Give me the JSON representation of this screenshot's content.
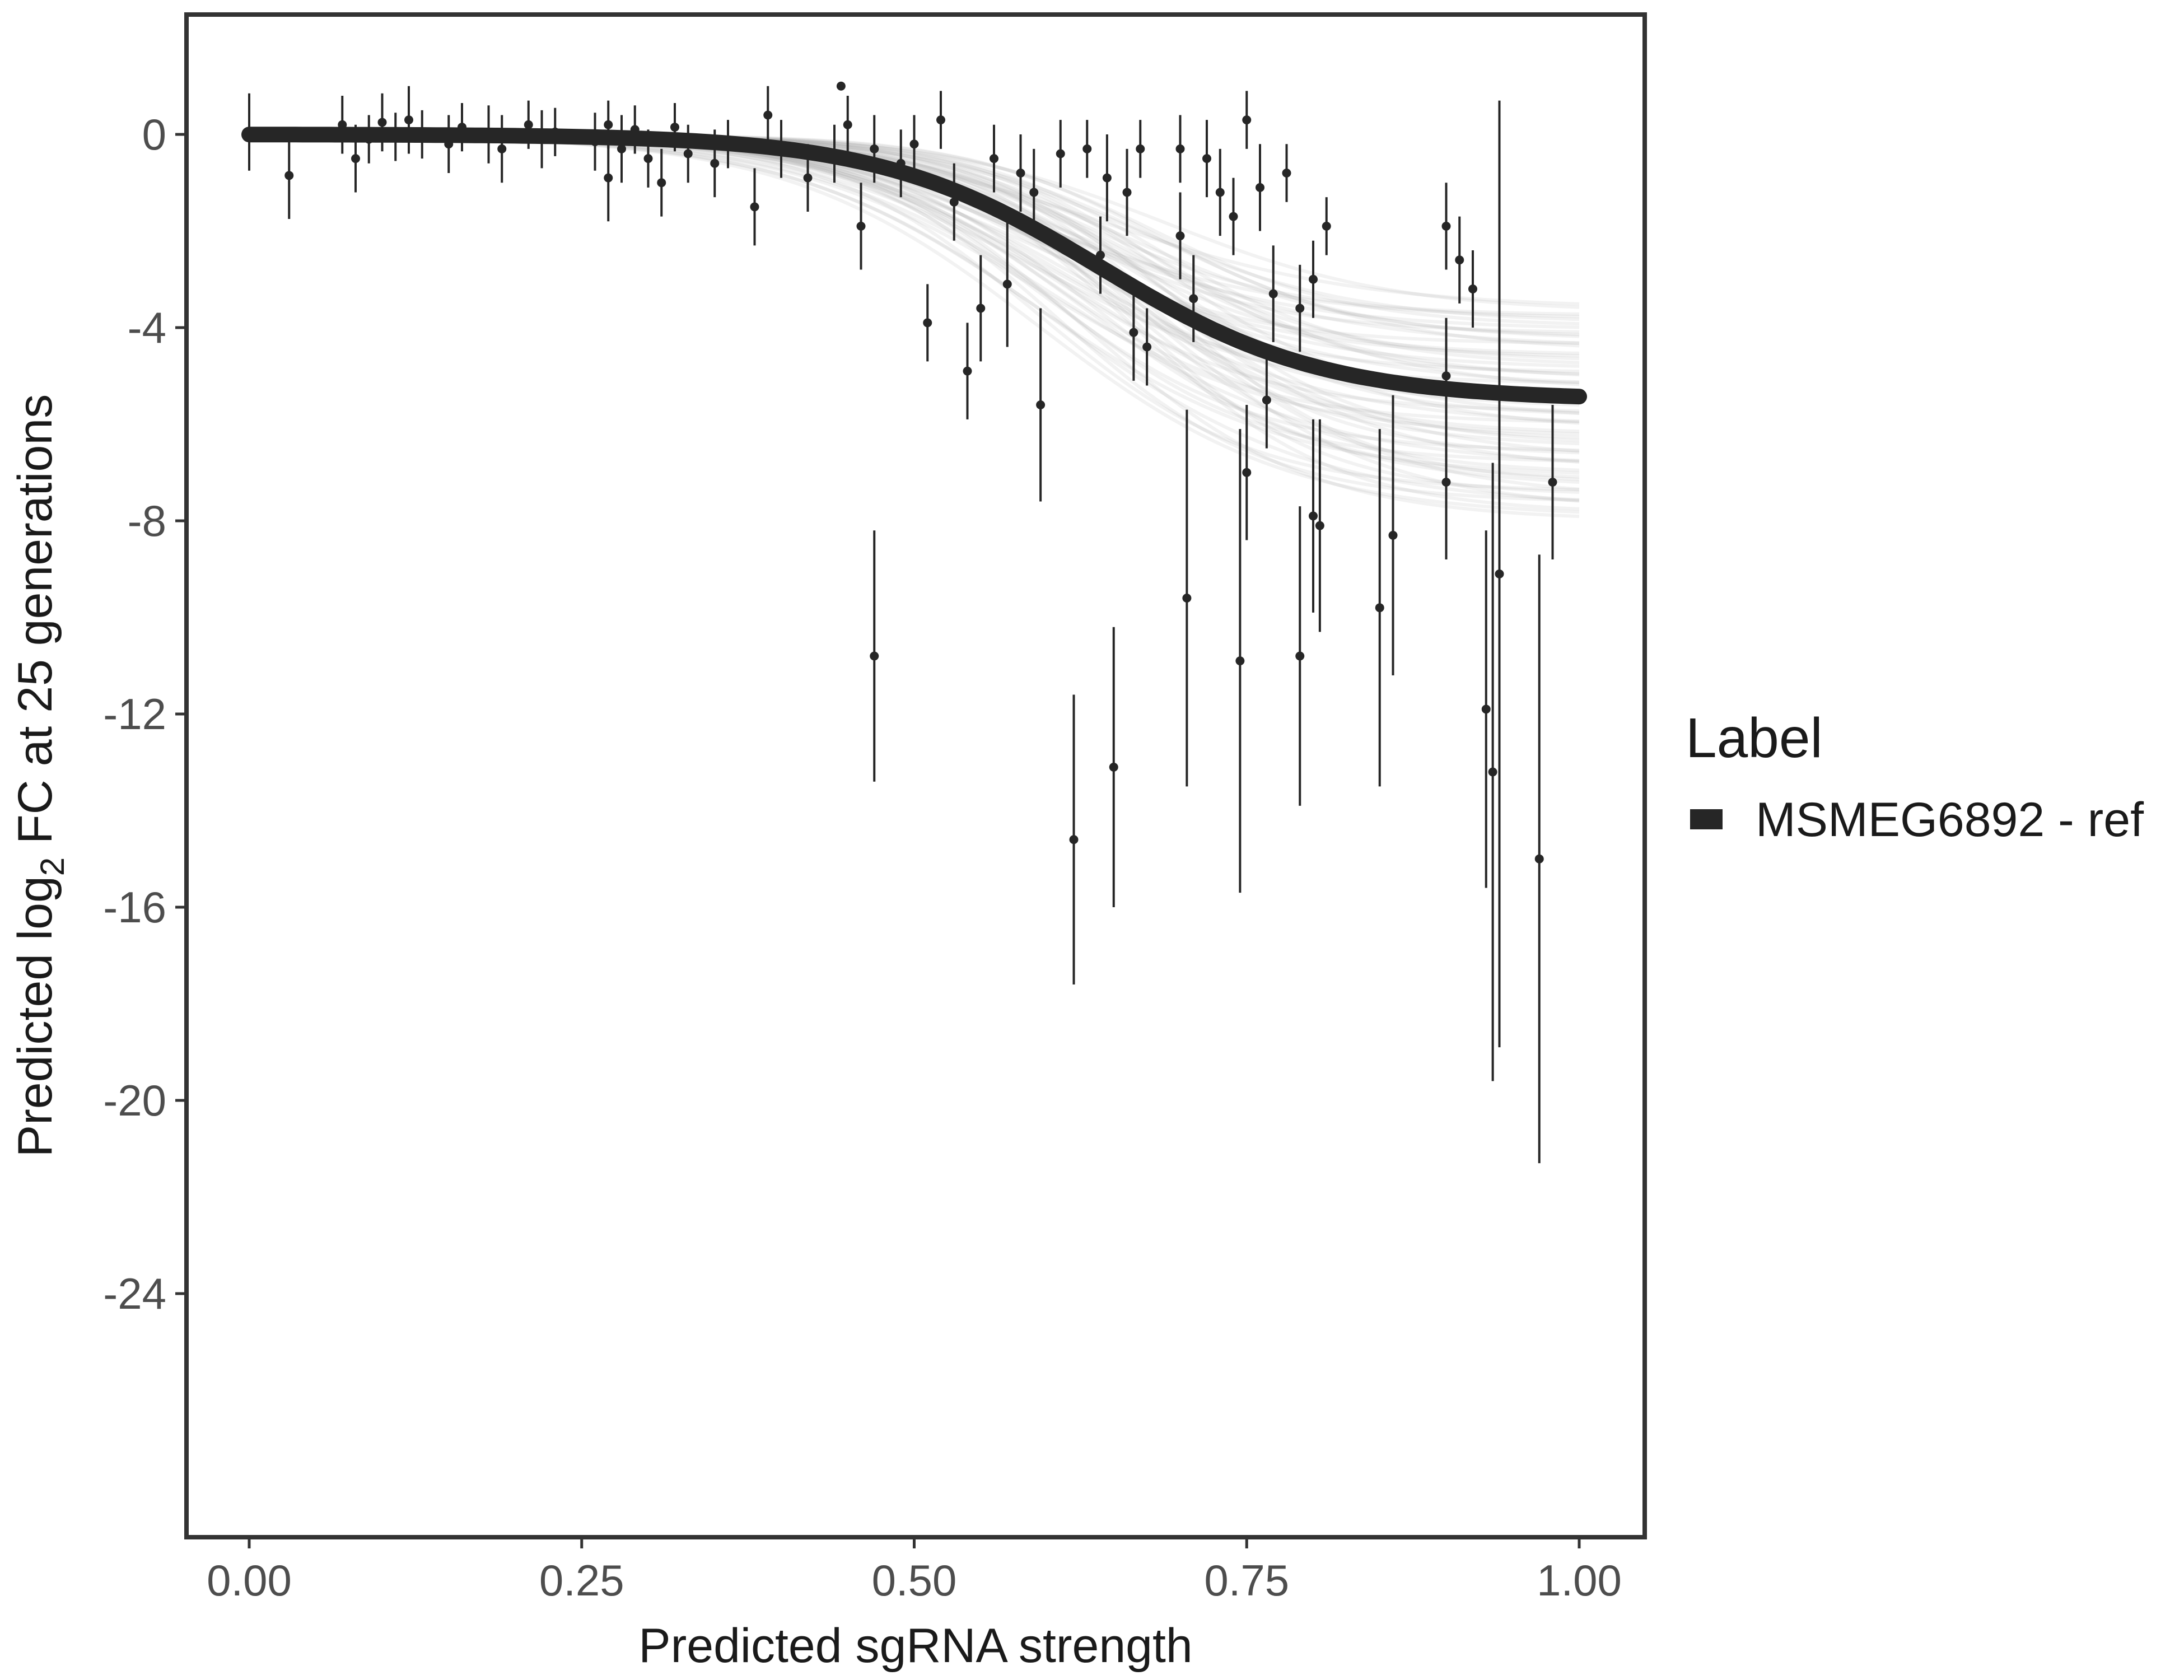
{
  "chart_data": {
    "type": "scatter",
    "title": "",
    "xlabel": "Predicted sgRNA strength",
    "ylabel_parts": {
      "prefix": "Predicted  log",
      "subscript": "2",
      "suffix": " FC at 25 generations"
    },
    "xlim": [
      -0.1,
      2.094
    ],
    "ylim": [
      -29.5,
      2.4
    ],
    "x_ticks": [
      0.0,
      0.25,
      0.5,
      0.75,
      1.0
    ],
    "x_tick_labels": [
      "0.00",
      "0.25",
      "0.50",
      "0.75",
      "1.00"
    ],
    "y_ticks": [
      0,
      -4,
      -8,
      -12,
      -16,
      -20,
      -24
    ],
    "y_tick_labels": [
      "0",
      "-4",
      "-8",
      "-12",
      "-16",
      "-20",
      "-24"
    ],
    "grid": false,
    "legend": {
      "title": "Label",
      "position": "right",
      "entries": [
        "MSMEG6892 - ref"
      ]
    },
    "colors": {
      "fit_line": "#262626",
      "bands": "#9e9e9e",
      "points": "#262626",
      "frame": "#333333"
    },
    "fit_curve": {
      "plateau": -5.5,
      "midpoint": 0.64,
      "slope": 12.0
    },
    "band_bounds": {
      "upper_plateau": -3.6,
      "lower_plateau": -8.0
    },
    "points": [
      [
        0.0,
        0.05,
        0.8
      ],
      [
        0.03,
        -0.85,
        0.9
      ],
      [
        0.07,
        0.2,
        0.6
      ],
      [
        0.08,
        -0.5,
        0.7
      ],
      [
        0.09,
        -0.1,
        0.5
      ],
      [
        0.1,
        0.25,
        0.6
      ],
      [
        0.11,
        -0.05,
        0.5
      ],
      [
        0.12,
        0.3,
        0.7
      ],
      [
        0.13,
        0.0,
        0.5
      ],
      [
        0.15,
        -0.2,
        0.6
      ],
      [
        0.16,
        0.15,
        0.5
      ],
      [
        0.18,
        0.0,
        0.6
      ],
      [
        0.19,
        -0.3,
        0.7
      ],
      [
        0.21,
        0.2,
        0.5
      ],
      [
        0.22,
        -0.1,
        0.6
      ],
      [
        0.23,
        0.05,
        0.5
      ],
      [
        0.26,
        -0.15,
        0.6
      ],
      [
        0.27,
        0.2,
        0.5
      ],
      [
        0.27,
        -0.9,
        0.9
      ],
      [
        0.28,
        -0.3,
        0.7
      ],
      [
        0.29,
        0.1,
        0.5
      ],
      [
        0.3,
        -0.5,
        0.6
      ],
      [
        0.31,
        -1.0,
        0.7
      ],
      [
        0.32,
        0.15,
        0.5
      ],
      [
        0.33,
        -0.4,
        0.6
      ],
      [
        0.35,
        -0.6,
        0.7
      ],
      [
        0.36,
        -0.2,
        0.5
      ],
      [
        0.38,
        -1.5,
        0.8
      ],
      [
        0.39,
        0.4,
        0.6
      ],
      [
        0.4,
        -0.3,
        0.6
      ],
      [
        0.42,
        -0.9,
        0.7
      ],
      [
        0.44,
        -0.4,
        0.6
      ],
      [
        0.445,
        1.0,
        0.0
      ],
      [
        0.45,
        0.2,
        0.6
      ],
      [
        0.46,
        -1.9,
        0.9
      ],
      [
        0.47,
        -0.3,
        0.7
      ],
      [
        0.47,
        -10.8,
        2.6
      ],
      [
        0.49,
        -0.6,
        0.7
      ],
      [
        0.5,
        -0.2,
        0.6
      ],
      [
        0.51,
        -3.9,
        0.8
      ],
      [
        0.52,
        0.3,
        0.6
      ],
      [
        0.53,
        -1.4,
        0.8
      ],
      [
        0.54,
        -4.9,
        1.0
      ],
      [
        0.55,
        -3.6,
        1.1
      ],
      [
        0.56,
        -0.5,
        0.7
      ],
      [
        0.57,
        -3.1,
        1.3
      ],
      [
        0.58,
        -0.8,
        0.8
      ],
      [
        0.59,
        -1.2,
        0.9
      ],
      [
        0.595,
        -5.6,
        2.0
      ],
      [
        0.61,
        -0.4,
        0.7
      ],
      [
        0.62,
        -14.6,
        3.0
      ],
      [
        0.63,
        -0.3,
        0.6
      ],
      [
        0.64,
        -2.5,
        0.8
      ],
      [
        0.645,
        -0.9,
        0.9
      ],
      [
        0.65,
        -13.1,
        2.9
      ],
      [
        0.66,
        -1.2,
        0.9
      ],
      [
        0.665,
        -4.1,
        1.0
      ],
      [
        0.67,
        -0.3,
        0.6
      ],
      [
        0.675,
        -4.4,
        0.8
      ],
      [
        0.7,
        -0.3,
        0.7
      ],
      [
        0.7,
        -2.1,
        0.9
      ],
      [
        0.705,
        -9.6,
        3.9
      ],
      [
        0.71,
        -3.4,
        0.9
      ],
      [
        0.72,
        -0.5,
        0.8
      ],
      [
        0.73,
        -1.2,
        0.9
      ],
      [
        0.74,
        -1.7,
        0.8
      ],
      [
        0.745,
        -10.9,
        4.8
      ],
      [
        0.75,
        -7.0,
        1.4
      ],
      [
        0.75,
        0.3,
        0.6
      ],
      [
        0.76,
        -1.1,
        0.9
      ],
      [
        0.765,
        -5.5,
        1.0
      ],
      [
        0.77,
        -3.3,
        1.0
      ],
      [
        0.78,
        -0.8,
        0.6
      ],
      [
        0.79,
        -3.6,
        0.9
      ],
      [
        0.79,
        -10.8,
        3.1
      ],
      [
        0.8,
        -7.9,
        2.0
      ],
      [
        0.8,
        -3.0,
        0.8
      ],
      [
        0.805,
        -8.1,
        2.2
      ],
      [
        0.81,
        -1.9,
        0.6
      ],
      [
        0.85,
        -9.8,
        3.7
      ],
      [
        0.86,
        -8.3,
        2.9
      ],
      [
        0.9,
        -1.9,
        0.9
      ],
      [
        0.9,
        -5.0,
        1.2
      ],
      [
        0.9,
        -7.2,
        1.6
      ],
      [
        0.91,
        -2.6,
        0.9
      ],
      [
        0.92,
        -3.2,
        0.8
      ],
      [
        0.93,
        -11.9,
        3.7
      ],
      [
        0.935,
        -13.2,
        6.4
      ],
      [
        0.94,
        -9.1,
        9.8
      ],
      [
        0.97,
        -15.0,
        6.3
      ],
      [
        0.98,
        -7.2,
        1.6
      ]
    ]
  }
}
